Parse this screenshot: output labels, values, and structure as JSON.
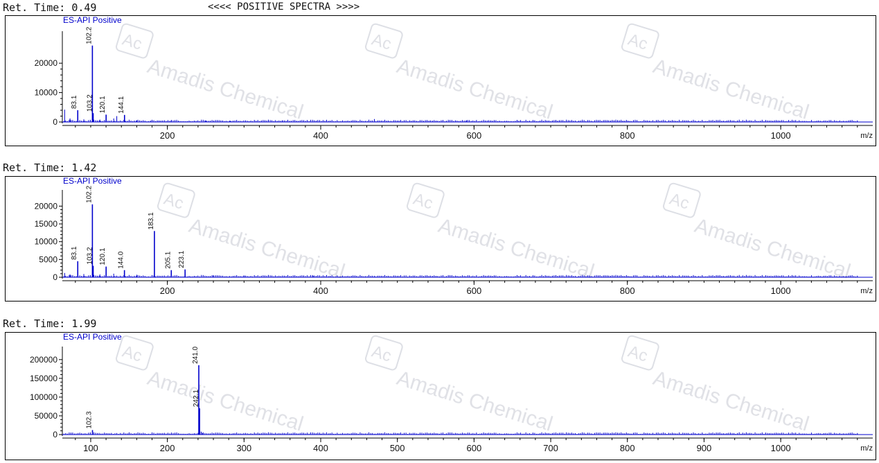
{
  "banner": "<<<< POSITIVE SPECTRA >>>>",
  "watermark": {
    "logo": "Ac",
    "text": "Amadis Chemical"
  },
  "colors": {
    "trace": "#0000cc",
    "axis": "#000000",
    "text": "#111111"
  },
  "chart_data": [
    {
      "type": "bar",
      "header": "Ret. Time: 0.49",
      "series_label": "ES-API Positive",
      "xlabel": "m/z",
      "xlim": [
        63,
        1102
      ],
      "ylim": [
        0,
        29000
      ],
      "x_ticks": [
        200,
        400,
        600,
        800,
        1000
      ],
      "y_ticks": [
        0,
        10000,
        20000
      ],
      "peaks": [
        {
          "x": 66,
          "y": 4200
        },
        {
          "x": 73,
          "y": 1200
        },
        {
          "x": 83.1,
          "y": 4000,
          "label": "83.1"
        },
        {
          "x": 91,
          "y": 900
        },
        {
          "x": 102.2,
          "y": 26000,
          "label": "102.2"
        },
        {
          "x": 103.2,
          "y": 3000,
          "label": "103.2"
        },
        {
          "x": 112,
          "y": 800
        },
        {
          "x": 120.1,
          "y": 2500,
          "label": "120.1"
        },
        {
          "x": 130,
          "y": 1200
        },
        {
          "x": 134,
          "y": 2000
        },
        {
          "x": 144.1,
          "y": 2400,
          "label": "144.1"
        },
        {
          "x": 160,
          "y": 600
        },
        {
          "x": 178,
          "y": 500
        },
        {
          "x": 205,
          "y": 500
        },
        {
          "x": 250,
          "y": 500
        },
        {
          "x": 282,
          "y": 400
        },
        {
          "x": 350,
          "y": 500
        },
        {
          "x": 470,
          "y": 1000
        },
        {
          "x": 590,
          "y": 600
        }
      ]
    },
    {
      "type": "bar",
      "header": "Ret. Time: 1.42",
      "series_label": "ES-API Positive",
      "xlabel": "m/z",
      "xlim": [
        63,
        1102
      ],
      "ylim": [
        0,
        23000
      ],
      "x_ticks": [
        200,
        400,
        600,
        800,
        1000
      ],
      "y_ticks": [
        0,
        5000,
        10000,
        15000,
        20000
      ],
      "peaks": [
        {
          "x": 66,
          "y": 1200
        },
        {
          "x": 73,
          "y": 800
        },
        {
          "x": 83.1,
          "y": 4500,
          "label": "83.1"
        },
        {
          "x": 91,
          "y": 900
        },
        {
          "x": 102.2,
          "y": 20500,
          "label": "102.2"
        },
        {
          "x": 103.2,
          "y": 3200,
          "label": "103.2"
        },
        {
          "x": 112,
          "y": 800
        },
        {
          "x": 120.1,
          "y": 3000,
          "label": "120.1"
        },
        {
          "x": 130,
          "y": 1000
        },
        {
          "x": 144.0,
          "y": 2000,
          "label": "144.0"
        },
        {
          "x": 160,
          "y": 700
        },
        {
          "x": 183.1,
          "y": 13000,
          "label": "183.1"
        },
        {
          "x": 205.1,
          "y": 2000,
          "label": "205.1"
        },
        {
          "x": 223.1,
          "y": 2200,
          "label": "223.1"
        },
        {
          "x": 260,
          "y": 600
        },
        {
          "x": 300,
          "y": 500
        },
        {
          "x": 390,
          "y": 400
        },
        {
          "x": 470,
          "y": 400
        }
      ]
    },
    {
      "type": "bar",
      "header": "Ret. Time: 1.99",
      "series_label": "ES-API Positive",
      "xlabel": "m/z",
      "xlim": [
        63,
        1102
      ],
      "ylim": [
        0,
        220000
      ],
      "x_ticks": [
        100,
        200,
        300,
        400,
        500,
        600,
        700,
        800,
        900,
        1000
      ],
      "y_ticks": [
        0,
        50000,
        100000,
        150000,
        200000
      ],
      "peaks": [
        {
          "x": 102.3,
          "y": 12000,
          "label": "102.3"
        },
        {
          "x": 150,
          "y": 3000
        },
        {
          "x": 241.0,
          "y": 185000,
          "label": "241.0"
        },
        {
          "x": 242,
          "y": 70000,
          "label": "242.1"
        },
        {
          "x": 244,
          "y": 8000
        },
        {
          "x": 246,
          "y": 4000
        },
        {
          "x": 320,
          "y": 3000
        },
        {
          "x": 400,
          "y": 1500
        },
        {
          "x": 500,
          "y": 1200
        }
      ]
    }
  ]
}
